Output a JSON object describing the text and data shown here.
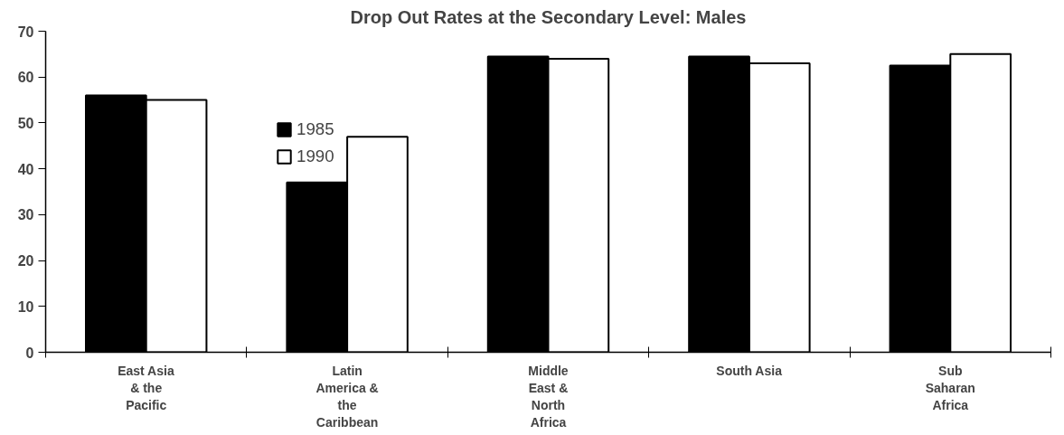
{
  "chart_data": {
    "type": "bar",
    "title": "Drop Out Rates at the Secondary Level: Males",
    "categories": [
      "East Asia\n& the\nPacific",
      "Latin\nAmerica &\nthe\nCaribbean",
      "Middle\nEast &\nNorth\nAfrica",
      "South Asia",
      "Sub\nSaharan\nAfrica"
    ],
    "series": [
      {
        "name": "1985",
        "color": "#000000",
        "values": [
          56,
          37,
          64.5,
          64.5,
          62.5
        ]
      },
      {
        "name": "1990",
        "color": "#ffffff",
        "values": [
          55,
          47,
          64,
          63,
          65
        ]
      }
    ],
    "ylim": [
      0,
      70
    ],
    "yticks": [
      0,
      10,
      20,
      30,
      40,
      50,
      60,
      70
    ],
    "grid": false,
    "legend": "top left"
  }
}
